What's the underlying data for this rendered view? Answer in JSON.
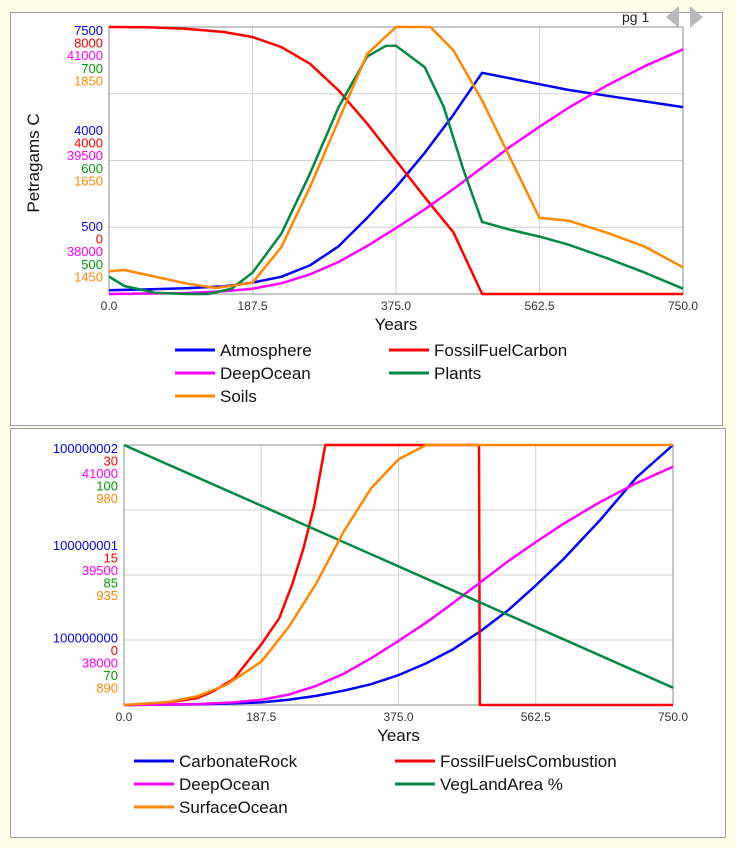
{
  "page_label": "pg 1",
  "nav_icons": {
    "prev": "chevron-left-icon",
    "next": "chevron-right-icon"
  },
  "chart_data": [
    {
      "type": "line",
      "xlabel": "Years",
      "ylabel": "Petragams C",
      "x_ticks": [
        "0.0",
        "187.5",
        "375.0",
        "562.5",
        "750.0"
      ],
      "xlim": [
        0,
        750
      ],
      "grid": true,
      "legend_position": "bottom",
      "scale_groups": [
        {
          "series": "Atmosphere",
          "color": "#0000ee",
          "ticks": [
            "500",
            "4000",
            "7500"
          ],
          "ylim": [
            500,
            7500
          ]
        },
        {
          "series": "FossilFuelCarbon",
          "color": "#ff0000",
          "ticks": [
            "0",
            "4000",
            "8000"
          ],
          "ylim": [
            0,
            8000
          ]
        },
        {
          "series": "DeepOcean",
          "color": "#ff00ff",
          "ticks": [
            "38000",
            "39500",
            "41000"
          ],
          "ylim": [
            38000,
            41000
          ]
        },
        {
          "series": "Plants",
          "color": "#009900",
          "ticks": [
            "500",
            "600",
            "700"
          ],
          "ylim": [
            500,
            700
          ]
        },
        {
          "series": "Soils",
          "color": "#ff8800",
          "ticks": [
            "1450",
            "1650",
            "1850"
          ],
          "ylim": [
            1450,
            1850
          ]
        }
      ],
      "series": [
        {
          "name": "Atmosphere",
          "color": "#0000ff",
          "x": [
            0,
            50,
            100,
            150,
            187.5,
            225,
            262.5,
            300,
            337.5,
            375,
            412.5,
            450,
            487.5,
            525,
            562.5,
            600,
            650,
            700,
            750
          ],
          "y": [
            600,
            620,
            650,
            700,
            800,
            950,
            1250,
            1750,
            2500,
            3300,
            4200,
            5200,
            6300,
            6150,
            6000,
            5850,
            5700,
            5550,
            5400
          ]
        },
        {
          "name": "FossilFuelCarbon",
          "color": "#ff0000",
          "x": [
            0,
            50,
            100,
            150,
            187.5,
            225,
            262.5,
            300,
            337.5,
            375,
            412.5,
            450,
            487.5,
            525,
            600,
            675,
            750
          ],
          "y": [
            8000,
            7990,
            7950,
            7850,
            7700,
            7400,
            6900,
            6100,
            5100,
            4000,
            2900,
            1850,
            0,
            0,
            0,
            0,
            0
          ]
        },
        {
          "name": "DeepOcean",
          "color": "#ff00ff",
          "x": [
            0,
            100,
            150,
            187.5,
            225,
            262.5,
            300,
            337.5,
            375,
            412.5,
            450,
            487.5,
            525,
            562.5,
            600,
            650,
            700,
            750
          ],
          "y": [
            38000,
            38010,
            38030,
            38060,
            38120,
            38220,
            38360,
            38540,
            38740,
            38950,
            39180,
            39420,
            39660,
            39880,
            40090,
            40340,
            40560,
            40750
          ]
        },
        {
          "name": "Plants",
          "color": "#008844",
          "x": [
            0,
            20,
            60,
            100,
            130,
            160,
            187.5,
            225,
            262.5,
            300,
            337.5,
            362,
            375,
            412.5,
            437.5,
            462.5,
            487.5,
            525,
            562.5,
            600,
            650,
            700,
            750
          ],
          "y": [
            513,
            506,
            501,
            498,
            498,
            504,
            516,
            545,
            590,
            640,
            678,
            686,
            686,
            670,
            640,
            594,
            554,
            548,
            543,
            537,
            527,
            516,
            504
          ]
        },
        {
          "name": "Soils",
          "color": "#ff8800",
          "x": [
            0,
            20,
            60,
            100,
            140,
            187.5,
            225,
            262.5,
            300,
            337.5,
            375,
            395,
            420,
            450,
            487.5,
            525,
            562.5,
            600,
            650,
            700,
            750
          ],
          "y": [
            1484,
            1486,
            1476,
            1466,
            1459,
            1467,
            1520,
            1610,
            1710,
            1810,
            1868,
            1872,
            1862,
            1815,
            1740,
            1652,
            1564,
            1560,
            1542,
            1521,
            1490
          ]
        }
      ]
    },
    {
      "type": "line",
      "xlabel": "Years",
      "x_ticks": [
        "0.0",
        "187.5",
        "375.0",
        "562.5",
        "750.0"
      ],
      "xlim": [
        0,
        750
      ],
      "grid": true,
      "legend_position": "bottom",
      "scale_groups": [
        {
          "series": "CarbonateRock",
          "color": "#0000ee",
          "ticks": [
            "100000000",
            "100000001",
            "100000002"
          ],
          "ylim": [
            100000000,
            100000002
          ]
        },
        {
          "series": "FossilFuelsCombustion",
          "color": "#ff0000",
          "ticks": [
            "0",
            "15",
            "30"
          ],
          "ylim": [
            0,
            30
          ]
        },
        {
          "series": "DeepOcean",
          "color": "#ff00ff",
          "ticks": [
            "38000",
            "39500",
            "41000"
          ],
          "ylim": [
            38000,
            41000
          ]
        },
        {
          "series": "VegLandArea %",
          "color": "#009900",
          "ticks": [
            "70",
            "85",
            "100"
          ],
          "ylim": [
            70,
            100
          ]
        },
        {
          "series": "SurfaceOcean",
          "color": "#ff8800",
          "ticks": [
            "890",
            "935",
            "980"
          ],
          "ylim": [
            890,
            980
          ]
        }
      ],
      "series": [
        {
          "name": "CarbonateRock",
          "color": "#0000ff",
          "x": [
            0,
            100,
            187.5,
            225,
            262.5,
            300,
            337.5,
            375,
            412.5,
            450,
            487.5,
            525,
            562.5,
            600,
            650,
            700,
            750
          ],
          "y": [
            100000000,
            100000000.005,
            100000000.02,
            100000000.04,
            100000000.07,
            100000000.11,
            100000000.16,
            100000000.23,
            100000000.32,
            100000000.43,
            100000000.57,
            100000000.73,
            100000000.92,
            100000001.12,
            100000001.42,
            100000001.75,
            100000002.1
          ]
        },
        {
          "name": "FossilFuelsCombustion",
          "color": "#ff0000",
          "x": [
            0,
            60,
            100,
            120,
            150,
            187.5,
            212,
            230,
            245,
            260,
            275,
            300,
            325,
            375,
            450,
            485,
            486,
            560,
            650,
            750
          ],
          "y": [
            0,
            0.3,
            0.8,
            1.5,
            3,
            7,
            10,
            14,
            18,
            23,
            30,
            30,
            30,
            30,
            30,
            30,
            0,
            0,
            0,
            0
          ]
        },
        {
          "name": "DeepOcean",
          "color": "#ff00ff",
          "x": [
            0,
            100,
            150,
            187.5,
            225,
            262.5,
            300,
            337.5,
            375,
            412.5,
            450,
            487.5,
            525,
            562.5,
            600,
            650,
            700,
            750
          ],
          "y": [
            38000,
            38010,
            38030,
            38060,
            38120,
            38220,
            38360,
            38540,
            38740,
            38950,
            39180,
            39420,
            39660,
            39880,
            40090,
            40340,
            40560,
            40750
          ]
        },
        {
          "name": "VegLandArea %",
          "color": "#008844",
          "x": [
            0,
            750
          ],
          "y": [
            100,
            72
          ]
        },
        {
          "name": "SurfaceOcean",
          "color": "#ff8800",
          "x": [
            0,
            60,
            100,
            140,
            187.5,
            225,
            262.5,
            300,
            337.5,
            375,
            412.5,
            450,
            487.5,
            525,
            600,
            675,
            750
          ],
          "y": [
            890,
            891,
            893,
            897,
            905,
            917,
            932,
            950,
            965,
            975,
            982,
            988,
            992,
            991,
            990,
            989,
            988
          ]
        }
      ]
    }
  ]
}
